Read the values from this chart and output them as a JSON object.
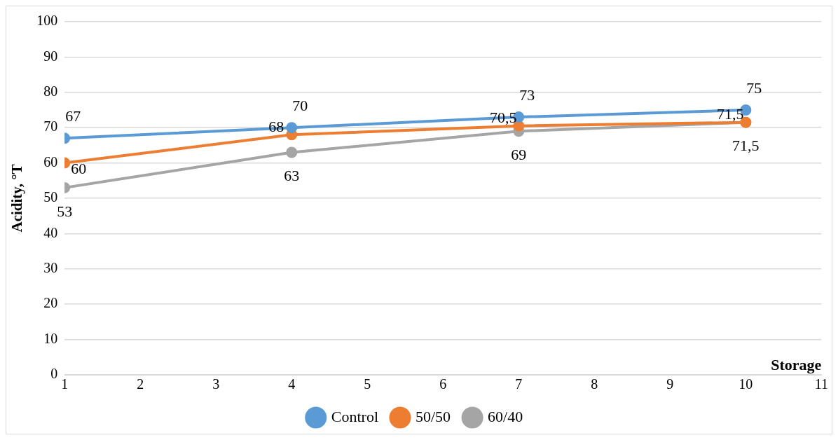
{
  "chart_data": {
    "type": "line",
    "xlabel": "Storage",
    "ylabel": "Acidity, °T",
    "x": [
      1,
      4,
      7,
      10
    ],
    "xlim": [
      1,
      11
    ],
    "xticks": [
      1,
      2,
      3,
      4,
      5,
      6,
      7,
      8,
      9,
      10,
      11
    ],
    "ylim": [
      0,
      100
    ],
    "yticks": [
      0,
      10,
      20,
      30,
      40,
      50,
      60,
      70,
      80,
      90,
      100
    ],
    "grid": "y",
    "legend": "bottom",
    "marker": "circle",
    "series": [
      {
        "name": "Control",
        "color": "#5b9bd5",
        "values": [
          67,
          70,
          73,
          75
        ],
        "value_labels": [
          "67",
          "70",
          "73",
          "75"
        ]
      },
      {
        "name": "50/50",
        "color": "#ed7d31",
        "values": [
          60,
          68,
          70.5,
          71.5
        ],
        "value_labels": [
          "60",
          "68",
          "70,5",
          "71,5"
        ]
      },
      {
        "name": "60/40",
        "color": "#a5a5a5",
        "values": [
          53,
          63,
          69,
          71.5
        ],
        "value_labels": [
          "53",
          "63",
          "69",
          "71,5"
        ]
      }
    ]
  }
}
